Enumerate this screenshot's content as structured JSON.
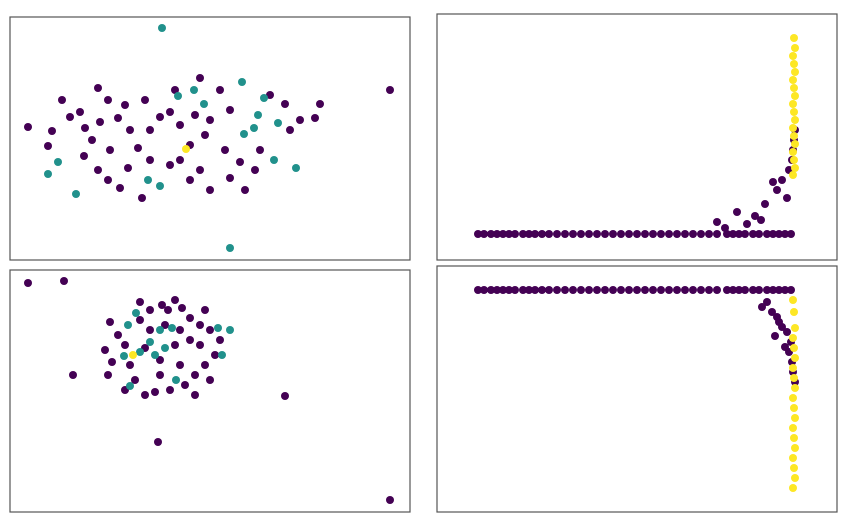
{
  "chart_data": [
    {
      "type": "scatter",
      "xlim": [
        0,
        400
      ],
      "ylim": [
        0,
        243
      ],
      "series": [
        {
          "color": "#440154",
          "x": [
            18,
            52,
            60,
            42,
            38,
            88,
            98,
            70,
            75,
            90,
            82,
            108,
            115,
            120,
            100,
            74,
            88,
            110,
            135,
            150,
            140,
            128,
            140,
            160,
            170,
            190,
            165,
            185,
            200,
            195,
            180,
            170,
            180,
            190,
            210,
            220,
            215,
            230,
            235,
            245,
            260,
            275,
            280,
            290,
            310,
            305,
            250,
            200,
            220,
            132,
            118,
            98,
            160,
            380
          ],
          "y": [
            133,
            160,
            143,
            129,
            114,
            172,
            160,
            148,
            132,
            138,
            120,
            142,
            155,
            130,
            110,
            104,
            90,
            72,
            160,
            143,
            130,
            112,
            100,
            148,
            135,
            182,
            170,
            145,
            140,
            125,
            115,
            100,
            80,
            90,
            170,
            150,
            110,
            98,
            70,
            90,
            165,
            156,
            130,
            140,
            156,
            142,
            110,
            70,
            82,
            62,
            92,
            80,
            95,
            170
          ]
        },
        {
          "color": "#21918c",
          "x": [
            152,
            48,
            38,
            66,
            168,
            184,
            194,
            232,
            254,
            248,
            244,
            268,
            234,
            264,
            286,
            138,
            150,
            220
          ],
          "y": [
            232,
            98,
            86,
            66,
            164,
            170,
            156,
            178,
            162,
            145,
            132,
            137,
            126,
            100,
            92,
            80,
            74,
            12
          ]
        },
        {
          "color": "#fde725",
          "x": [
            176
          ],
          "y": [
            111
          ]
        }
      ]
    },
    {
      "type": "scatter",
      "xlim": [
        0,
        400
      ],
      "ylim": [
        0,
        246
      ],
      "series": [
        {
          "color": "#440154",
          "x": [
            41,
            47,
            54,
            60,
            66,
            72,
            78,
            86,
            92,
            98,
            105,
            112,
            120,
            128,
            136,
            144,
            152,
            160,
            168,
            176,
            184,
            192,
            200,
            208,
            216,
            224,
            232,
            240,
            248,
            256,
            264,
            272,
            280,
            290,
            296,
            302,
            308,
            316,
            322,
            330,
            336,
            342,
            348,
            354,
            280,
            288,
            300,
            310,
            318,
            324,
            328,
            336,
            340,
            345,
            350,
            352,
            355,
            356,
            357,
            358
          ],
          "y": [
            26,
            26,
            26,
            26,
            26,
            26,
            26,
            26,
            26,
            26,
            26,
            26,
            26,
            26,
            26,
            26,
            26,
            26,
            26,
            26,
            26,
            26,
            26,
            26,
            26,
            26,
            26,
            26,
            26,
            26,
            26,
            26,
            26,
            26,
            26,
            26,
            26,
            26,
            26,
            26,
            26,
            26,
            26,
            26,
            38,
            32,
            48,
            36,
            44,
            40,
            56,
            78,
            70,
            80,
            62,
            90,
            100,
            110,
            120,
            130
          ]
        },
        {
          "color": "#fde725",
          "x": [
            356,
            358,
            357,
            356,
            358,
            357,
            356,
            358,
            357,
            356,
            358,
            357,
            356,
            358,
            357,
            356,
            358,
            357
          ],
          "y": [
            85,
            92,
            100,
            108,
            116,
            124,
            132,
            140,
            148,
            156,
            164,
            172,
            180,
            188,
            196,
            204,
            212,
            222
          ]
        }
      ]
    },
    {
      "type": "scatter",
      "xlim": [
        0,
        400
      ],
      "ylim": [
        0,
        242
      ],
      "series": [
        {
          "color": "#440154",
          "x": [
            18,
            54,
            63,
            148,
            275,
            380,
            100,
            108,
            95,
            102,
            98,
            115,
            130,
            140,
            152,
            165,
            172,
            180,
            190,
            200,
            210,
            205,
            195,
            185,
            175,
            160,
            145,
            135,
            125,
            120,
            135,
            150,
            165,
            180,
            170,
            155,
            140,
            130,
            190,
            200,
            185,
            150,
            170,
            115,
            158,
            195
          ],
          "y": [
            229,
            231,
            137,
            70,
            116,
            12,
            190,
            177,
            162,
            150,
            137,
            122,
            210,
            202,
            207,
            212,
            204,
            194,
            187,
            182,
            172,
            157,
            147,
            137,
            127,
            122,
            120,
            117,
            132,
            147,
            164,
            152,
            167,
            172,
            182,
            187,
            182,
            192,
            167,
            132,
            117,
            137,
            147,
            167,
            202,
            202
          ]
        },
        {
          "color": "#21918c",
          "x": [
            126,
            118,
            150,
            162,
            140,
            114,
            130,
            155,
            208,
            220,
            212,
            120,
            166,
            145
          ],
          "y": [
            199,
            187,
            182,
            184,
            170,
            156,
            160,
            164,
            184,
            182,
            157,
            126,
            132,
            157
          ]
        },
        {
          "color": "#fde725",
          "x": [
            123
          ],
          "y": [
            157
          ]
        }
      ]
    },
    {
      "type": "scatter",
      "xlim": [
        0,
        400
      ],
      "ylim": [
        0,
        246
      ],
      "series": [
        {
          "color": "#440154",
          "x": [
            41,
            47,
            54,
            60,
            66,
            72,
            78,
            86,
            92,
            98,
            105,
            112,
            120,
            128,
            136,
            144,
            152,
            160,
            168,
            176,
            184,
            192,
            200,
            208,
            216,
            224,
            232,
            240,
            248,
            256,
            264,
            272,
            280,
            290,
            296,
            302,
            308,
            316,
            322,
            330,
            336,
            342,
            348,
            354,
            330,
            335,
            340,
            345,
            350,
            338,
            348,
            352,
            355,
            356,
            358,
            354,
            325,
            342
          ],
          "y": [
            222,
            222,
            222,
            222,
            222,
            222,
            222,
            222,
            222,
            222,
            222,
            222,
            222,
            222,
            222,
            222,
            222,
            222,
            222,
            222,
            222,
            222,
            222,
            222,
            222,
            222,
            222,
            222,
            222,
            222,
            222,
            222,
            222,
            222,
            222,
            222,
            222,
            222,
            222,
            222,
            222,
            222,
            222,
            222,
            210,
            200,
            195,
            185,
            180,
            176,
            165,
            160,
            150,
            140,
            130,
            170,
            205,
            190
          ]
        },
        {
          "color": "#fde725",
          "x": [
            356,
            358,
            357,
            356,
            358,
            357,
            356,
            358,
            357,
            356,
            358,
            357,
            356,
            358,
            357,
            356,
            358,
            357,
            356
          ],
          "y": [
            24,
            34,
            44,
            54,
            64,
            74,
            84,
            94,
            104,
            114,
            124,
            134,
            144,
            154,
            164,
            174,
            184,
            200,
            212
          ]
        }
      ]
    }
  ]
}
